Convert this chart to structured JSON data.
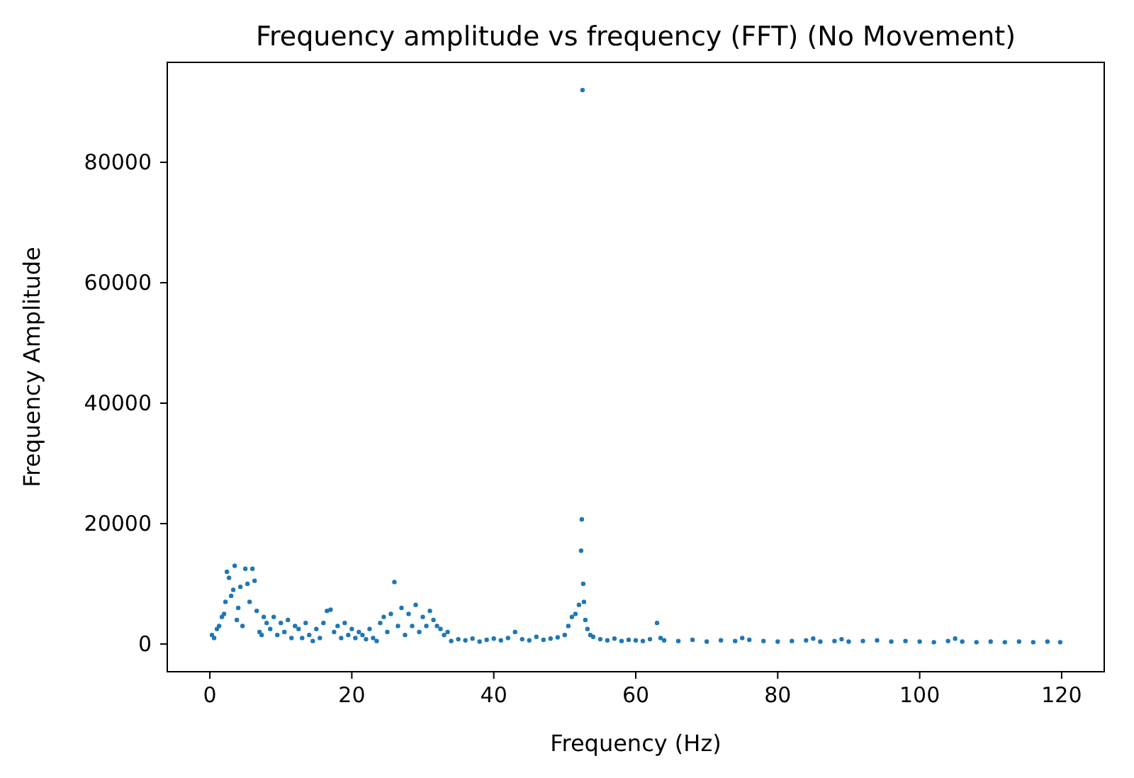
{
  "chart_data": {
    "type": "scatter",
    "title": "Frequency amplitude vs frequency (FFT) (No Movement)",
    "xlabel": "Frequency (Hz)",
    "ylabel": "Frequency Amplitude",
    "xlim": [
      -6,
      126
    ],
    "ylim": [
      -4600,
      96600
    ],
    "xticks": [
      0,
      20,
      40,
      60,
      80,
      100,
      120
    ],
    "yticks": [
      0,
      20000,
      40000,
      60000,
      80000
    ],
    "grid": false,
    "marker": "circle",
    "series": [
      {
        "color": "#1f77b4",
        "x": [
          0.3,
          0.6,
          1,
          1.3,
          1.7,
          2,
          2.2,
          2.4,
          2.7,
          3,
          3.3,
          3.5,
          3.8,
          4,
          4.3,
          4.6,
          5,
          5.3,
          5.6,
          6,
          6.3,
          6.6,
          7,
          7.3,
          7.6,
          8,
          8.5,
          9,
          9.5,
          10,
          10.5,
          11,
          11.5,
          12,
          12.5,
          13,
          13.5,
          14,
          14.5,
          15,
          15.5,
          16,
          16.5,
          17,
          17.5,
          18,
          18.5,
          19,
          19.5,
          20,
          20.5,
          21,
          21.5,
          22,
          22.5,
          23,
          23.5,
          24,
          24.5,
          25,
          25.5,
          26,
          26.5,
          27,
          27.5,
          28,
          28.5,
          29,
          29.5,
          30,
          30.5,
          31,
          31.5,
          32,
          32.5,
          33,
          33.5,
          34,
          35,
          36,
          37,
          38,
          39,
          40,
          41,
          42,
          43,
          44,
          45,
          46,
          47,
          48,
          49,
          50,
          50.5,
          51,
          51.5,
          52,
          52.3,
          52.4,
          52.5,
          52.6,
          52.7,
          52.9,
          53.2,
          53.6,
          54,
          55,
          56,
          57,
          58,
          59,
          60,
          61,
          62,
          63,
          63.5,
          64,
          66,
          68,
          70,
          72,
          74,
          75,
          76,
          78,
          80,
          82,
          84,
          85,
          86,
          88,
          89,
          90,
          92,
          94,
          96,
          98,
          100,
          102,
          104,
          105,
          106,
          108,
          110,
          112,
          114,
          116,
          118,
          119.8
        ],
        "values": [
          1500,
          1000,
          2500,
          3000,
          4500,
          5000,
          7000,
          12000,
          11000,
          8000,
          9000,
          13000,
          4000,
          6000,
          9500,
          3000,
          12500,
          10000,
          7000,
          12500,
          10500,
          5500,
          2000,
          1500,
          4500,
          3500,
          2500,
          4500,
          1500,
          3500,
          2000,
          4000,
          1000,
          3000,
          2500,
          1000,
          3500,
          1500,
          500,
          2500,
          1000,
          3500,
          5500,
          5700,
          2000,
          3000,
          1000,
          3500,
          1500,
          2500,
          1000,
          2000,
          1500,
          800,
          2500,
          1000,
          500,
          3500,
          4500,
          2000,
          5000,
          10300,
          3000,
          6000,
          1500,
          5000,
          3000,
          6500,
          2000,
          4500,
          3000,
          5500,
          4000,
          3000,
          2500,
          1500,
          2000,
          500,
          800,
          600,
          900,
          400,
          700,
          900,
          600,
          1000,
          2000,
          800,
          600,
          1200,
          700,
          900,
          1100,
          1500,
          3000,
          4500,
          5000,
          6500,
          15500,
          20700,
          92000,
          10000,
          7000,
          4000,
          2500,
          1500,
          1200,
          800,
          600,
          900,
          500,
          700,
          600,
          500,
          800,
          3500,
          1000,
          600,
          500,
          700,
          400,
          600,
          500,
          1000,
          700,
          500,
          400,
          500,
          600,
          900,
          400,
          500,
          800,
          400,
          500,
          600,
          400,
          500,
          400,
          300,
          500,
          900,
          400,
          300,
          400,
          300,
          400,
          300,
          400,
          300
        ]
      }
    ]
  }
}
